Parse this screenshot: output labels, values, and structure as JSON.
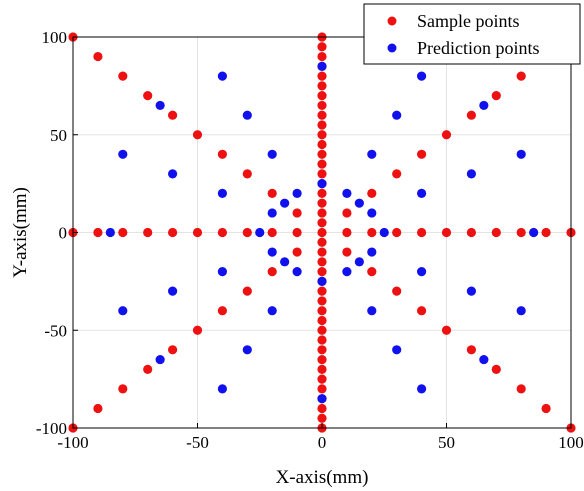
{
  "chart_data": {
    "type": "scatter",
    "xlabel": "X-axis(mm)",
    "ylabel": "Y-axis(mm)",
    "xlim": [
      -100,
      100
    ],
    "ylim": [
      -100,
      100
    ],
    "xticks": [
      -100,
      -50,
      0,
      50,
      100
    ],
    "yticks": [
      -100,
      -50,
      0,
      50,
      100
    ],
    "grid": true,
    "legend_position": "top-right",
    "series": [
      {
        "name": "Sample points",
        "color": "#ee1111",
        "points": [
          [
            0,
            -100
          ],
          [
            0,
            -95
          ],
          [
            0,
            -90
          ],
          [
            0,
            -85
          ],
          [
            0,
            -80
          ],
          [
            0,
            -75
          ],
          [
            0,
            -70
          ],
          [
            0,
            -65
          ],
          [
            0,
            -60
          ],
          [
            0,
            -55
          ],
          [
            0,
            -50
          ],
          [
            0,
            -45
          ],
          [
            0,
            -40
          ],
          [
            0,
            -35
          ],
          [
            0,
            -30
          ],
          [
            0,
            -25
          ],
          [
            0,
            -20
          ],
          [
            0,
            -15
          ],
          [
            0,
            -10
          ],
          [
            0,
            -5
          ],
          [
            0,
            0
          ],
          [
            0,
            5
          ],
          [
            0,
            10
          ],
          [
            0,
            15
          ],
          [
            0,
            20
          ],
          [
            0,
            25
          ],
          [
            0,
            30
          ],
          [
            0,
            35
          ],
          [
            0,
            40
          ],
          [
            0,
            45
          ],
          [
            0,
            50
          ],
          [
            0,
            55
          ],
          [
            0,
            60
          ],
          [
            0,
            65
          ],
          [
            0,
            70
          ],
          [
            0,
            75
          ],
          [
            0,
            80
          ],
          [
            0,
            85
          ],
          [
            0,
            90
          ],
          [
            0,
            95
          ],
          [
            0,
            100
          ],
          [
            -100,
            0
          ],
          [
            -90,
            0
          ],
          [
            -80,
            0
          ],
          [
            -70,
            0
          ],
          [
            -60,
            0
          ],
          [
            -50,
            0
          ],
          [
            -40,
            0
          ],
          [
            -30,
            0
          ],
          [
            -20,
            0
          ],
          [
            -10,
            0
          ],
          [
            10,
            0
          ],
          [
            20,
            0
          ],
          [
            30,
            0
          ],
          [
            40,
            0
          ],
          [
            50,
            0
          ],
          [
            60,
            0
          ],
          [
            70,
            0
          ],
          [
            80,
            0
          ],
          [
            90,
            0
          ],
          [
            100,
            0
          ],
          [
            -100,
            100
          ],
          [
            -90,
            90
          ],
          [
            -80,
            80
          ],
          [
            -70,
            70
          ],
          [
            -60,
            60
          ],
          [
            -50,
            50
          ],
          [
            -40,
            40
          ],
          [
            -30,
            30
          ],
          [
            -20,
            20
          ],
          [
            -10,
            10
          ],
          [
            10,
            10
          ],
          [
            20,
            20
          ],
          [
            30,
            30
          ],
          [
            40,
            40
          ],
          [
            50,
            50
          ],
          [
            60,
            60
          ],
          [
            70,
            70
          ],
          [
            80,
            80
          ],
          [
            -10,
            -10
          ],
          [
            -20,
            -20
          ],
          [
            -30,
            -30
          ],
          [
            -40,
            -40
          ],
          [
            -50,
            -50
          ],
          [
            -60,
            -60
          ],
          [
            -70,
            -70
          ],
          [
            -80,
            -80
          ],
          [
            -90,
            -90
          ],
          [
            -100,
            -100
          ],
          [
            10,
            -10
          ],
          [
            20,
            -20
          ],
          [
            30,
            -30
          ],
          [
            40,
            -40
          ],
          [
            50,
            -50
          ],
          [
            60,
            -60
          ],
          [
            70,
            -70
          ],
          [
            80,
            -80
          ],
          [
            90,
            -90
          ],
          [
            100,
            -100
          ]
        ]
      },
      {
        "name": "Prediction points",
        "color": "#1111ee",
        "points": [
          [
            0,
            85
          ],
          [
            0,
            25
          ],
          [
            0,
            -25
          ],
          [
            0,
            -85
          ],
          [
            -85,
            0
          ],
          [
            -25,
            0
          ],
          [
            25,
            0
          ],
          [
            85,
            0
          ],
          [
            -65,
            65
          ],
          [
            -15,
            15
          ],
          [
            15,
            15
          ],
          [
            65,
            65
          ],
          [
            -65,
            -65
          ],
          [
            -15,
            -15
          ],
          [
            15,
            -15
          ],
          [
            65,
            -65
          ],
          [
            -40,
            80
          ],
          [
            40,
            80
          ],
          [
            -30,
            60
          ],
          [
            30,
            60
          ],
          [
            -80,
            40
          ],
          [
            -20,
            40
          ],
          [
            20,
            40
          ],
          [
            80,
            40
          ],
          [
            -60,
            30
          ],
          [
            60,
            30
          ],
          [
            -40,
            20
          ],
          [
            -10,
            20
          ],
          [
            10,
            20
          ],
          [
            40,
            20
          ],
          [
            -20,
            10
          ],
          [
            20,
            10
          ],
          [
            -20,
            -10
          ],
          [
            20,
            -10
          ],
          [
            -40,
            -20
          ],
          [
            -10,
            -20
          ],
          [
            10,
            -20
          ],
          [
            40,
            -20
          ],
          [
            -60,
            -30
          ],
          [
            60,
            -30
          ],
          [
            -80,
            -40
          ],
          [
            -20,
            -40
          ],
          [
            20,
            -40
          ],
          [
            80,
            -40
          ],
          [
            -30,
            -60
          ],
          [
            30,
            -60
          ],
          [
            -40,
            -80
          ],
          [
            40,
            -80
          ]
        ]
      }
    ]
  }
}
